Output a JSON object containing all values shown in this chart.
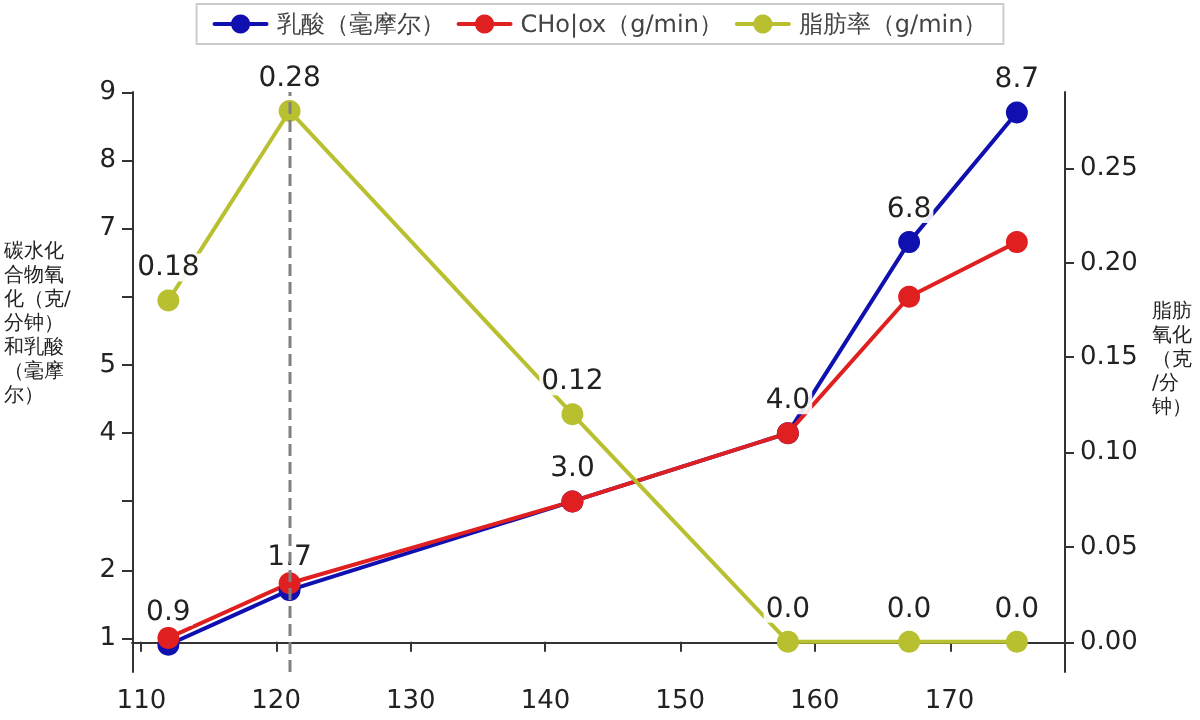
{
  "chart_data": {
    "type": "line",
    "ylabel": "碳水化合物氧化（克/分钟）和乳酸（毫摩尔）",
    "y2label": "脂肪氧化（克/分钟）",
    "x": [
      112,
      121,
      142,
      158,
      167,
      175
    ],
    "series": [
      {
        "name": "乳酸（毫摩尔）",
        "color": "#1010b0",
        "values": [
          0.9,
          1.7,
          3.0,
          4.0,
          6.8,
          8.7
        ],
        "value_labels": [
          "0.9",
          "1.7",
          "3.0",
          "4.0",
          "6.8",
          "8.7"
        ]
      },
      {
        "name": "CHo|ox（g/min）",
        "color": "#e02020",
        "values": [
          1.0,
          1.8,
          3.0,
          4.0,
          6.0,
          6.8
        ],
        "value_labels": [
          null,
          null,
          null,
          null,
          null,
          null
        ]
      },
      {
        "name": "脂肪率（g/min）",
        "color": "#b8c030",
        "axis": "y2",
        "values": [
          0.18,
          0.28,
          0.12,
          0.0,
          0.0,
          0.0
        ],
        "value_labels": [
          "0.18",
          "0.28",
          "0.12",
          "0.0",
          "0.0",
          "0.0"
        ]
      }
    ],
    "xlim": [
      109.3,
      178.5
    ],
    "xticks": [
      110,
      120,
      130,
      140,
      150,
      160,
      170
    ],
    "ylim": [
      0.5,
      9
    ],
    "yticks": [
      1,
      2,
      {
        "value": 3,
        "label": null
      },
      4,
      5,
      {
        "value": 6,
        "label": null
      },
      7,
      8,
      9
    ],
    "y2lim": [
      -0.016,
      0.29
    ],
    "y2ticks": [
      {
        "value": 0,
        "label": "0.00"
      },
      {
        "value": 0.05,
        "label": "0.05"
      },
      {
        "value": 0.1,
        "label": "0.10"
      },
      {
        "value": 0.15,
        "label": "0.15"
      },
      {
        "value": 0.2,
        "label": "0.20"
      },
      {
        "value": 0.25,
        "label": "0.25"
      }
    ],
    "ref_lines": [
      {
        "axis": "x",
        "value": 121,
        "color": "#808080",
        "line_style": "dashed"
      }
    ],
    "grid": false,
    "legend": "top",
    "marker": "circle",
    "line_style": "solid"
  }
}
